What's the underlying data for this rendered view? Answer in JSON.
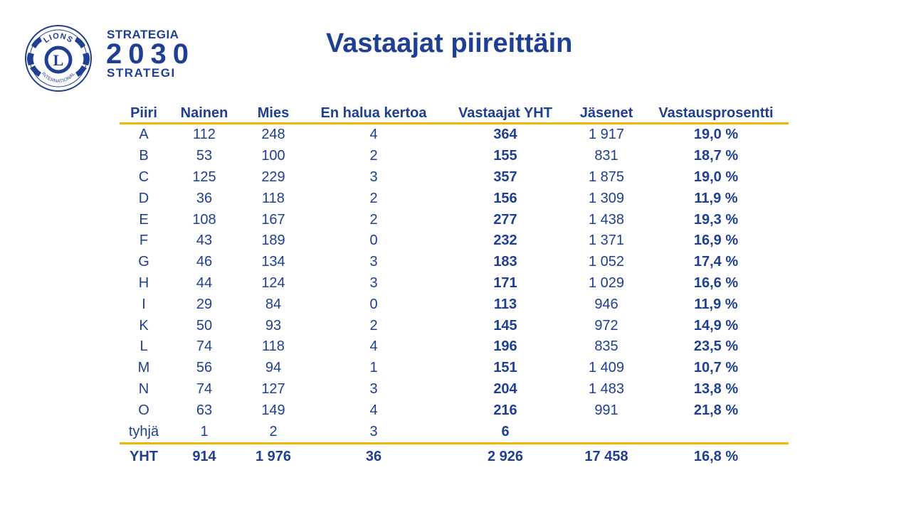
{
  "logo": {
    "emblem_icon": "lions-international-emblem",
    "emblem_letter": "L",
    "emblem_top_text": "LIONS",
    "emblem_bottom_text": "INTERNATIONAL",
    "line1": "STRATEGIA",
    "line2": "2030",
    "line3": "STRATEGI"
  },
  "title": "Vastaajat piireittäin",
  "colors": {
    "primary": "#1f3f92",
    "accent": "#f2b400"
  },
  "table": {
    "headers": [
      "Piiri",
      "Nainen",
      "Mies",
      "En halua kertoa",
      "Vastaajat YHT",
      "Jäsenet",
      "Vastausprosentti"
    ],
    "rows": [
      [
        "A",
        "112",
        "248",
        "4",
        "364",
        "1 917",
        "19,0 %"
      ],
      [
        "B",
        "53",
        "100",
        "2",
        "155",
        "831",
        "18,7 %"
      ],
      [
        "C",
        "125",
        "229",
        "3",
        "357",
        "1 875",
        "19,0 %"
      ],
      [
        "D",
        "36",
        "118",
        "2",
        "156",
        "1 309",
        "11,9 %"
      ],
      [
        "E",
        "108",
        "167",
        "2",
        "277",
        "1 438",
        "19,3 %"
      ],
      [
        "F",
        "43",
        "189",
        "0",
        "232",
        "1 371",
        "16,9 %"
      ],
      [
        "G",
        "46",
        "134",
        "3",
        "183",
        "1 052",
        "17,4 %"
      ],
      [
        "H",
        "44",
        "124",
        "3",
        "171",
        "1 029",
        "16,6 %"
      ],
      [
        "I",
        "29",
        "84",
        "0",
        "113",
        "946",
        "11,9 %"
      ],
      [
        "K",
        "50",
        "93",
        "2",
        "145",
        "972",
        "14,9 %"
      ],
      [
        "L",
        "74",
        "118",
        "4",
        "196",
        "835",
        "23,5 %"
      ],
      [
        "M",
        "56",
        "94",
        "1",
        "151",
        "1 409",
        "10,7 %"
      ],
      [
        "N",
        "74",
        "127",
        "3",
        "204",
        "1 483",
        "13,8 %"
      ],
      [
        "O",
        "63",
        "149",
        "4",
        "216",
        "991",
        "21,8 %"
      ],
      [
        "tyhjä",
        "1",
        "2",
        "3",
        "6",
        "",
        ""
      ]
    ],
    "total": [
      "YHT",
      "914",
      "1 976",
      "36",
      "2 926",
      "17 458",
      "16,8 %"
    ]
  }
}
